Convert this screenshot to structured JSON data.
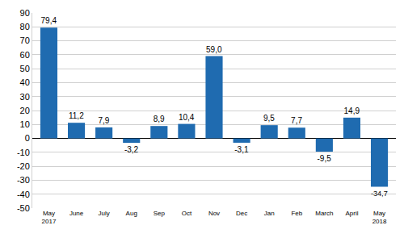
{
  "chart_data": {
    "type": "bar",
    "categories": [
      "May 2017",
      "June",
      "July",
      "Aug",
      "Sep",
      "Oct",
      "Nov",
      "Dec",
      "Jan",
      "Feb",
      "March",
      "April",
      "May 2018"
    ],
    "values": [
      79.4,
      11.2,
      7.9,
      -3.2,
      8.9,
      10.4,
      59.0,
      -3.1,
      9.5,
      7.7,
      -9.5,
      14.9,
      -34.7
    ],
    "value_labels": [
      "79,4",
      "11,2",
      "7,9",
      "-3,2",
      "8,9",
      "10,4",
      "59,0",
      "-3,1",
      "9,5",
      "7,7",
      "-9,5",
      "14,9",
      "-34,7"
    ],
    "color": "#1f6bb0",
    "ylim": [
      -50,
      90
    ],
    "yticks": [
      -50,
      -40,
      -30,
      -20,
      -10,
      0,
      10,
      20,
      30,
      40,
      50,
      60,
      70,
      80,
      90
    ],
    "grid": true,
    "data_labels": true
  }
}
